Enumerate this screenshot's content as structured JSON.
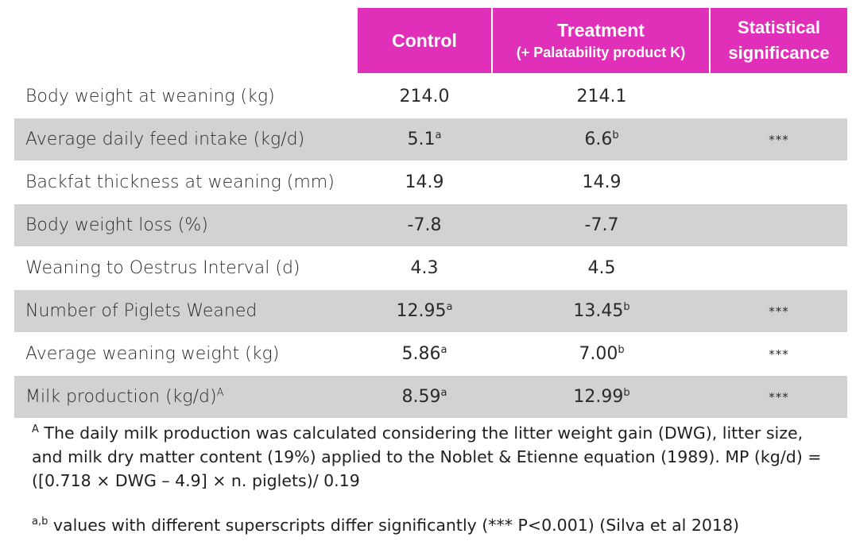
{
  "header": {
    "control": "Control",
    "treatment_line1": "Treatment",
    "treatment_line2": "(+ Palatability product K)",
    "stat_line1": "Statistical",
    "stat_line2": "significance"
  },
  "rows": [
    {
      "label": "Body weight at weaning (kg)",
      "label_sup": "",
      "control": "214.0",
      "control_sup": "",
      "treatment": "214.1",
      "treatment_sup": "",
      "significance": "",
      "shaded": false
    },
    {
      "label": "Average daily feed intake (kg/d)",
      "label_sup": "",
      "control": "5.1",
      "control_sup": "a",
      "treatment": "6.6",
      "treatment_sup": "b",
      "significance": "***",
      "shaded": true
    },
    {
      "label": "Backfat thickness at weaning (mm)",
      "label_sup": "",
      "control": "14.9",
      "control_sup": "",
      "treatment": "14.9",
      "treatment_sup": "",
      "significance": "",
      "shaded": false
    },
    {
      "label": "Body weight loss (%)",
      "label_sup": "",
      "control": "-7.8",
      "control_sup": "",
      "treatment": "-7.7",
      "treatment_sup": "",
      "significance": "",
      "shaded": true
    },
    {
      "label": "Weaning to Oestrus Interval (d)",
      "label_sup": "",
      "control": "4.3",
      "control_sup": "",
      "treatment": "4.5",
      "treatment_sup": "",
      "significance": "",
      "shaded": false
    },
    {
      "label": "Number of Piglets Weaned",
      "label_sup": "",
      "control": "12.95",
      "control_sup": "a",
      "treatment": "13.45",
      "treatment_sup": "b",
      "significance": "***",
      "shaded": true
    },
    {
      "label": "Average weaning weight (kg)",
      "label_sup": "",
      "control": "5.86",
      "control_sup": "a",
      "treatment": "7.00",
      "treatment_sup": "b",
      "significance": "***",
      "shaded": false
    },
    {
      "label": "Milk production (kg/d)",
      "label_sup": "A",
      "control": "8.59",
      "control_sup": "a",
      "treatment": "12.99",
      "treatment_sup": "b",
      "significance": "***",
      "shaded": true
    }
  ],
  "footnotes": {
    "note_a_sup": "A",
    "note_a_text": " The daily milk production was calculated considering the litter weight gain (DWG), litter size, and milk dry matter content (19%) applied to the  Noblet & Etienne equation (1989). MP (kg/d) = ([0.718 × DWG – 4.9] × n. piglets)/ 0.19",
    "note_b_sup": "a,b",
    "note_b_text": " values with different superscripts differ significantly (*** P<0.001) (Silva et al 2018)"
  },
  "colors": {
    "header_bg": "#e02fb8",
    "shaded_row_bg": "#d2d2d2"
  }
}
